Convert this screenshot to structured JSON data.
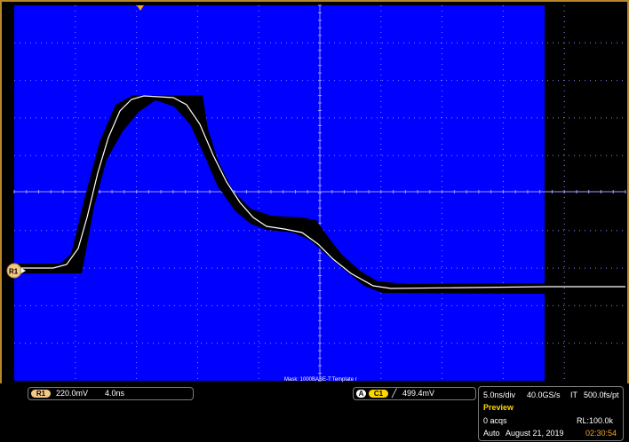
{
  "mask_label": "Mask: 1000BASE-T:Template r",
  "ref_marker": "R1",
  "ref_readout": {
    "badge": "R1",
    "scale": "220.0mV",
    "timebase": "4.0ns"
  },
  "trigger_readout": {
    "mode_badge": "A",
    "channel_badge": "C1",
    "slope_glyph": "╱",
    "level": "499.4mV"
  },
  "acquisition": {
    "time_per_div": "5.0ns/div",
    "sample_rate": "40.0GS/s",
    "mode": "IT",
    "resolution": "500.0fs/pt",
    "status": "Preview",
    "acqs": "0 acqs",
    "record_length": "RL:100.0k",
    "trigger_mode": "Auto",
    "date": "August 21, 2019",
    "time": "02:30:54"
  },
  "colors": {
    "screen_bg": "#0000ff",
    "mask_fill": "#000000",
    "waveform": "#ffffff",
    "frame": "#b8862b",
    "ref_marker_fill": "#f3c98a",
    "trigger_marker": "#f5a623",
    "channel_chip": "#ffd600",
    "time_highlight": "#f5a623"
  }
}
